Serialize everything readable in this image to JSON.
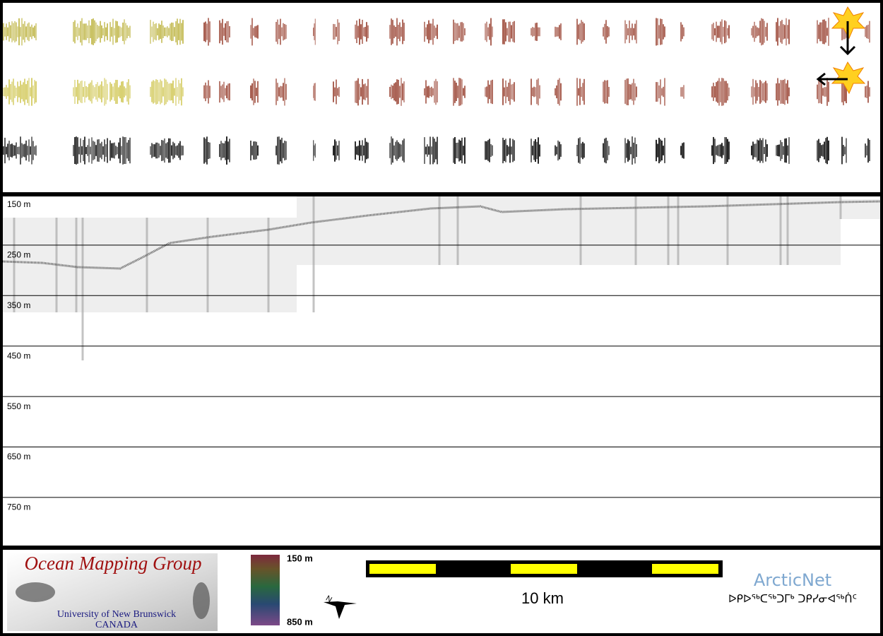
{
  "depth_labels": [
    "150 m",
    "250 m",
    "350 m",
    "450 m",
    "550 m",
    "650 m",
    "750 m"
  ],
  "logo": {
    "title": "Ocean Mapping Group",
    "university": "University of New Brunswick",
    "country": "CANADA"
  },
  "colorbar": {
    "top_label": "150 m",
    "bottom_label": "850 m"
  },
  "north_label": "N",
  "scale_label": "10 km",
  "partner": {
    "name": "ArcticNet",
    "name_syllabics": "ᐅᑭᐅᖅᑕᖅᑐᒥᒃ ᑐᑭᓯᓂᐊᖅᑏᑦ"
  }
}
